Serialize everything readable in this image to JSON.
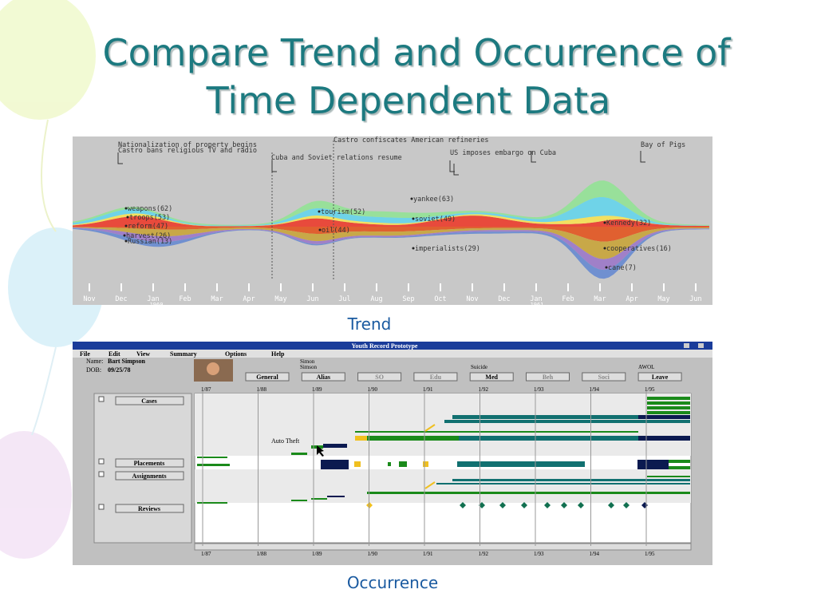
{
  "title": [
    "Compare Trend and Occurrence of",
    "Time Dependent Data"
  ],
  "trend": {
    "events": [
      "Nationalization of property begins",
      "Castro bans religious TV and radio",
      "Castro confiscates American refineries",
      "Cuba and Soviet relations resume",
      "US imposes embargo on Cuba",
      "Bay of Pigs"
    ],
    "streams": [
      "weapons(62)",
      "troops(53)",
      "reform(47)",
      "harvest(26)",
      "Russian(13)",
      "tourism(52)",
      "oil(44)",
      "yankee(63)",
      "soviet(49)",
      "imperialists(29)",
      "Kennedy(32)",
      "cooperatives(16)",
      "cane(7)"
    ],
    "months": [
      "Nov",
      "Dec",
      "Jan",
      "Feb",
      "Mar",
      "Apr",
      "May",
      "Jun",
      "Jul",
      "Aug",
      "Sep",
      "Oct",
      "Nov",
      "Dec",
      "Jan",
      "Feb",
      "Mar",
      "Apr",
      "May",
      "Jun"
    ],
    "years": [
      "1960",
      "1961"
    ],
    "caption": "Trend"
  },
  "occurrence": {
    "window_title": "Youth Record Prototype",
    "menu": [
      "File",
      "Edit",
      "View",
      "Summary",
      "Options",
      "Help"
    ],
    "name_label": "Name:",
    "name": "Bart Simpson",
    "dob_label": "DOB:",
    "dob": "09/25/78",
    "tab_notes": [
      "Simon",
      "Simson",
      "Suicide",
      "AWOL"
    ],
    "tabs": [
      "General",
      "Alias",
      "SO",
      "Edu",
      "Med",
      "Beh",
      "Soci",
      "Leave"
    ],
    "dates": [
      "1/87",
      "1/88",
      "1/89",
      "1/90",
      "1/91",
      "1/92",
      "1/93",
      "1/94",
      "1/95"
    ],
    "rows": [
      "Cases",
      "Placements",
      "Assignments",
      "Reviews"
    ],
    "annotation": "Auto Theft",
    "caption": "Occurrence"
  }
}
